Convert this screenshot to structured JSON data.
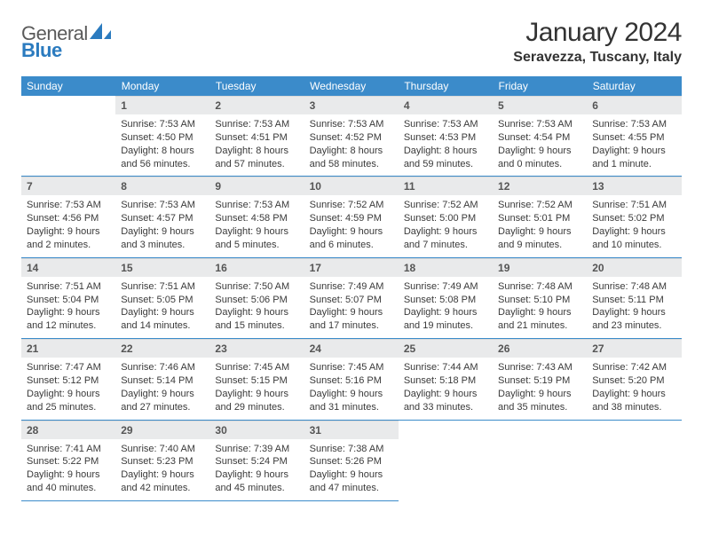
{
  "logo": {
    "part1": "General",
    "part2": "Blue"
  },
  "title": "January 2024",
  "location": "Seravezza, Tuscany, Italy",
  "colors": {
    "header_bg": "#3b8bca",
    "row_divider": "#3b8bca",
    "daynum_bg": "#e9eaeb",
    "text": "#3a3a3a"
  },
  "weekdays": [
    "Sunday",
    "Monday",
    "Tuesday",
    "Wednesday",
    "Thursday",
    "Friday",
    "Saturday"
  ],
  "weeks": [
    [
      {
        "n": "",
        "sr": "",
        "ss": "",
        "dl1": "",
        "dl2": ""
      },
      {
        "n": "1",
        "sr": "Sunrise: 7:53 AM",
        "ss": "Sunset: 4:50 PM",
        "dl1": "Daylight: 8 hours",
        "dl2": "and 56 minutes."
      },
      {
        "n": "2",
        "sr": "Sunrise: 7:53 AM",
        "ss": "Sunset: 4:51 PM",
        "dl1": "Daylight: 8 hours",
        "dl2": "and 57 minutes."
      },
      {
        "n": "3",
        "sr": "Sunrise: 7:53 AM",
        "ss": "Sunset: 4:52 PM",
        "dl1": "Daylight: 8 hours",
        "dl2": "and 58 minutes."
      },
      {
        "n": "4",
        "sr": "Sunrise: 7:53 AM",
        "ss": "Sunset: 4:53 PM",
        "dl1": "Daylight: 8 hours",
        "dl2": "and 59 minutes."
      },
      {
        "n": "5",
        "sr": "Sunrise: 7:53 AM",
        "ss": "Sunset: 4:54 PM",
        "dl1": "Daylight: 9 hours",
        "dl2": "and 0 minutes."
      },
      {
        "n": "6",
        "sr": "Sunrise: 7:53 AM",
        "ss": "Sunset: 4:55 PM",
        "dl1": "Daylight: 9 hours",
        "dl2": "and 1 minute."
      }
    ],
    [
      {
        "n": "7",
        "sr": "Sunrise: 7:53 AM",
        "ss": "Sunset: 4:56 PM",
        "dl1": "Daylight: 9 hours",
        "dl2": "and 2 minutes."
      },
      {
        "n": "8",
        "sr": "Sunrise: 7:53 AM",
        "ss": "Sunset: 4:57 PM",
        "dl1": "Daylight: 9 hours",
        "dl2": "and 3 minutes."
      },
      {
        "n": "9",
        "sr": "Sunrise: 7:53 AM",
        "ss": "Sunset: 4:58 PM",
        "dl1": "Daylight: 9 hours",
        "dl2": "and 5 minutes."
      },
      {
        "n": "10",
        "sr": "Sunrise: 7:52 AM",
        "ss": "Sunset: 4:59 PM",
        "dl1": "Daylight: 9 hours",
        "dl2": "and 6 minutes."
      },
      {
        "n": "11",
        "sr": "Sunrise: 7:52 AM",
        "ss": "Sunset: 5:00 PM",
        "dl1": "Daylight: 9 hours",
        "dl2": "and 7 minutes."
      },
      {
        "n": "12",
        "sr": "Sunrise: 7:52 AM",
        "ss": "Sunset: 5:01 PM",
        "dl1": "Daylight: 9 hours",
        "dl2": "and 9 minutes."
      },
      {
        "n": "13",
        "sr": "Sunrise: 7:51 AM",
        "ss": "Sunset: 5:02 PM",
        "dl1": "Daylight: 9 hours",
        "dl2": "and 10 minutes."
      }
    ],
    [
      {
        "n": "14",
        "sr": "Sunrise: 7:51 AM",
        "ss": "Sunset: 5:04 PM",
        "dl1": "Daylight: 9 hours",
        "dl2": "and 12 minutes."
      },
      {
        "n": "15",
        "sr": "Sunrise: 7:51 AM",
        "ss": "Sunset: 5:05 PM",
        "dl1": "Daylight: 9 hours",
        "dl2": "and 14 minutes."
      },
      {
        "n": "16",
        "sr": "Sunrise: 7:50 AM",
        "ss": "Sunset: 5:06 PM",
        "dl1": "Daylight: 9 hours",
        "dl2": "and 15 minutes."
      },
      {
        "n": "17",
        "sr": "Sunrise: 7:49 AM",
        "ss": "Sunset: 5:07 PM",
        "dl1": "Daylight: 9 hours",
        "dl2": "and 17 minutes."
      },
      {
        "n": "18",
        "sr": "Sunrise: 7:49 AM",
        "ss": "Sunset: 5:08 PM",
        "dl1": "Daylight: 9 hours",
        "dl2": "and 19 minutes."
      },
      {
        "n": "19",
        "sr": "Sunrise: 7:48 AM",
        "ss": "Sunset: 5:10 PM",
        "dl1": "Daylight: 9 hours",
        "dl2": "and 21 minutes."
      },
      {
        "n": "20",
        "sr": "Sunrise: 7:48 AM",
        "ss": "Sunset: 5:11 PM",
        "dl1": "Daylight: 9 hours",
        "dl2": "and 23 minutes."
      }
    ],
    [
      {
        "n": "21",
        "sr": "Sunrise: 7:47 AM",
        "ss": "Sunset: 5:12 PM",
        "dl1": "Daylight: 9 hours",
        "dl2": "and 25 minutes."
      },
      {
        "n": "22",
        "sr": "Sunrise: 7:46 AM",
        "ss": "Sunset: 5:14 PM",
        "dl1": "Daylight: 9 hours",
        "dl2": "and 27 minutes."
      },
      {
        "n": "23",
        "sr": "Sunrise: 7:45 AM",
        "ss": "Sunset: 5:15 PM",
        "dl1": "Daylight: 9 hours",
        "dl2": "and 29 minutes."
      },
      {
        "n": "24",
        "sr": "Sunrise: 7:45 AM",
        "ss": "Sunset: 5:16 PM",
        "dl1": "Daylight: 9 hours",
        "dl2": "and 31 minutes."
      },
      {
        "n": "25",
        "sr": "Sunrise: 7:44 AM",
        "ss": "Sunset: 5:18 PM",
        "dl1": "Daylight: 9 hours",
        "dl2": "and 33 minutes."
      },
      {
        "n": "26",
        "sr": "Sunrise: 7:43 AM",
        "ss": "Sunset: 5:19 PM",
        "dl1": "Daylight: 9 hours",
        "dl2": "and 35 minutes."
      },
      {
        "n": "27",
        "sr": "Sunrise: 7:42 AM",
        "ss": "Sunset: 5:20 PM",
        "dl1": "Daylight: 9 hours",
        "dl2": "and 38 minutes."
      }
    ],
    [
      {
        "n": "28",
        "sr": "Sunrise: 7:41 AM",
        "ss": "Sunset: 5:22 PM",
        "dl1": "Daylight: 9 hours",
        "dl2": "and 40 minutes."
      },
      {
        "n": "29",
        "sr": "Sunrise: 7:40 AM",
        "ss": "Sunset: 5:23 PM",
        "dl1": "Daylight: 9 hours",
        "dl2": "and 42 minutes."
      },
      {
        "n": "30",
        "sr": "Sunrise: 7:39 AM",
        "ss": "Sunset: 5:24 PM",
        "dl1": "Daylight: 9 hours",
        "dl2": "and 45 minutes."
      },
      {
        "n": "31",
        "sr": "Sunrise: 7:38 AM",
        "ss": "Sunset: 5:26 PM",
        "dl1": "Daylight: 9 hours",
        "dl2": "and 47 minutes."
      },
      {
        "n": "",
        "sr": "",
        "ss": "",
        "dl1": "",
        "dl2": ""
      },
      {
        "n": "",
        "sr": "",
        "ss": "",
        "dl1": "",
        "dl2": ""
      },
      {
        "n": "",
        "sr": "",
        "ss": "",
        "dl1": "",
        "dl2": ""
      }
    ]
  ]
}
